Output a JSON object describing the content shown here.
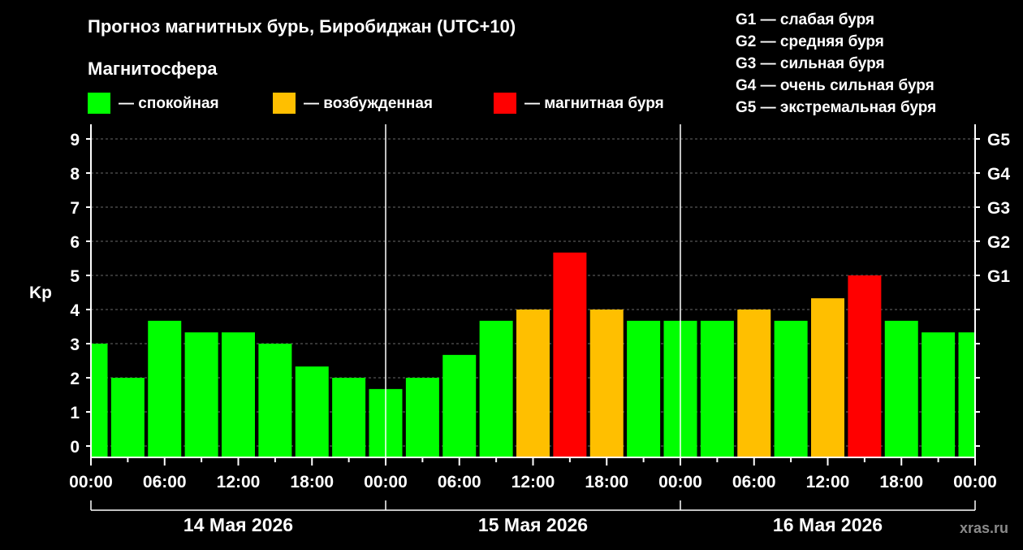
{
  "chart_data": {
    "type": "bar",
    "title": "Прогноз магнитных бурь, Биробиджан (UTC+10)",
    "ylabel": "Kp",
    "ylim": [
      0,
      9.5
    ],
    "yticks": [
      "0",
      "1",
      "2",
      "3",
      "4",
      "5",
      "6",
      "7",
      "8",
      "9"
    ],
    "g_scale": [
      {
        "kp": 5,
        "label": "G1"
      },
      {
        "kp": 6,
        "label": "G2"
      },
      {
        "kp": 7,
        "label": "G3"
      },
      {
        "kp": 8,
        "label": "G4"
      },
      {
        "kp": 9,
        "label": "G5"
      }
    ],
    "x_start_hours": 0,
    "x_end_hours": 72,
    "bar_interval_hours": 3,
    "x_ticks": [
      "00:00",
      "06:00",
      "12:00",
      "18:00",
      "00:00",
      "06:00",
      "12:00",
      "18:00",
      "00:00",
      "06:00",
      "12:00",
      "18:00",
      "00:00"
    ],
    "days": [
      "14 Мая 2026",
      "15 Мая 2026",
      "16 Мая 2026"
    ],
    "values": [
      3.0,
      2.0,
      3.67,
      3.33,
      3.33,
      3.0,
      2.33,
      2.0,
      1.67,
      2.0,
      2.67,
      3.67,
      4.0,
      5.67,
      4.0,
      3.67,
      3.67,
      3.67,
      4.0,
      3.67,
      4.33,
      5.0,
      3.67,
      3.33,
      3.33
    ],
    "levels": [
      "calm",
      "calm",
      "calm",
      "calm",
      "calm",
      "calm",
      "calm",
      "calm",
      "calm",
      "calm",
      "calm",
      "calm",
      "disturbed",
      "storm",
      "disturbed",
      "calm",
      "calm",
      "calm",
      "disturbed",
      "calm",
      "disturbed",
      "storm",
      "calm",
      "calm",
      "calm"
    ],
    "colors": {
      "calm": "#00ff00",
      "disturbed": "#ffbf00",
      "storm": "#ff0000"
    },
    "grid": true
  },
  "legend": {
    "heading": "Магнитосфера",
    "items": [
      {
        "key": "calm",
        "label": "— спокойная",
        "color": "#00ff00"
      },
      {
        "key": "disturbed",
        "label": "— возбужденная",
        "color": "#ffbf00"
      },
      {
        "key": "storm",
        "label": "— магнитная буря",
        "color": "#ff0000"
      }
    ]
  },
  "g_legend": [
    "G1 — слабая буря",
    "G2 — средняя буря",
    "G3 — сильная буря",
    "G4 — очень сильная буря",
    "G5 — экстремальная буря"
  ],
  "credit": "xras.ru"
}
